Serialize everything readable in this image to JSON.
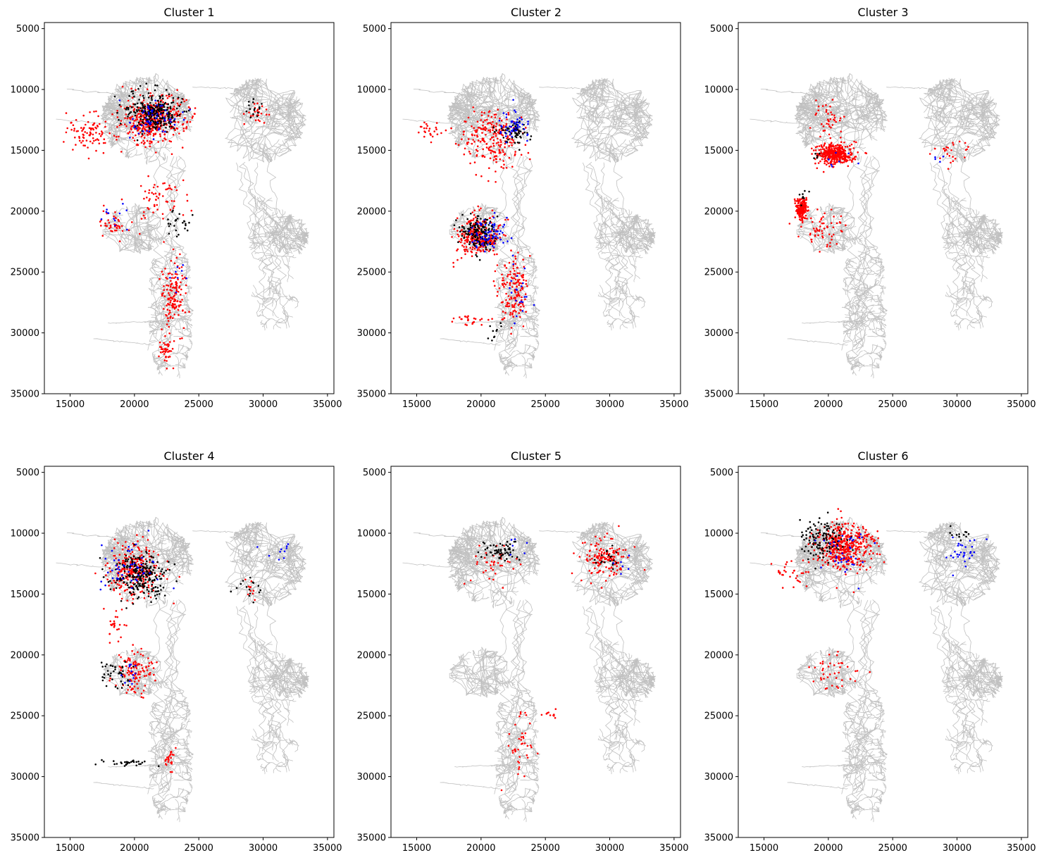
{
  "figure": {
    "background": "#ffffff",
    "skeleton_color": "#c0c0c0",
    "marker_colors": [
      "#ff0000",
      "#000000",
      "#0000ff"
    ]
  },
  "chart_data": [
    {
      "type": "scatter",
      "title": "Cluster 1",
      "xlim": [
        13000,
        35500
      ],
      "ylim": [
        35000,
        4500
      ],
      "y_inverted": true,
      "xticks": [
        "15000",
        "20000",
        "25000",
        "30000",
        "35000"
      ],
      "yticks": [
        "5000",
        "10000",
        "15000",
        "20000",
        "25000",
        "30000",
        "35000"
      ],
      "grid": false,
      "series": [
        {
          "color": "#ff0000",
          "regions": [
            {
              "cx": 21500,
              "cy": 12500,
              "sx": 2000,
              "sy": 1600,
              "n": 420
            },
            {
              "cx": 16500,
              "cy": 13500,
              "sx": 1500,
              "sy": 1200,
              "n": 90
            },
            {
              "cx": 22000,
              "cy": 19000,
              "sx": 1600,
              "sy": 1500,
              "n": 60
            },
            {
              "cx": 23000,
              "cy": 27000,
              "sx": 800,
              "sy": 2500,
              "n": 140
            },
            {
              "cx": 18500,
              "cy": 21000,
              "sx": 900,
              "sy": 900,
              "n": 40
            },
            {
              "cx": 29500,
              "cy": 12000,
              "sx": 900,
              "sy": 700,
              "n": 25
            },
            {
              "cx": 22500,
              "cy": 31500,
              "sx": 500,
              "sy": 700,
              "n": 40
            }
          ]
        },
        {
          "color": "#000000",
          "regions": [
            {
              "cx": 21500,
              "cy": 11800,
              "sx": 1600,
              "sy": 1300,
              "n": 260
            },
            {
              "cx": 23500,
              "cy": 21000,
              "sx": 800,
              "sy": 1000,
              "n": 25
            },
            {
              "cx": 29500,
              "cy": 11500,
              "sx": 700,
              "sy": 600,
              "n": 15
            }
          ]
        },
        {
          "color": "#0000ff",
          "regions": [
            {
              "cx": 21500,
              "cy": 12500,
              "sx": 1700,
              "sy": 1500,
              "n": 60
            },
            {
              "cx": 18500,
              "cy": 20500,
              "sx": 800,
              "sy": 900,
              "n": 12
            },
            {
              "cx": 23500,
              "cy": 25000,
              "sx": 600,
              "sy": 1200,
              "n": 8
            }
          ]
        }
      ]
    },
    {
      "type": "scatter",
      "title": "Cluster 2",
      "xlim": [
        13000,
        35500
      ],
      "ylim": [
        35000,
        4500
      ],
      "y_inverted": true,
      "xticks": [
        "15000",
        "20000",
        "25000",
        "30000",
        "35000"
      ],
      "yticks": [
        "5000",
        "10000",
        "15000",
        "20000",
        "25000",
        "30000",
        "35000"
      ],
      "grid": false,
      "series": [
        {
          "color": "#ff0000",
          "regions": [
            {
              "cx": 19800,
              "cy": 22000,
              "sx": 1400,
              "sy": 1400,
              "n": 260
            },
            {
              "cx": 21000,
              "cy": 14000,
              "sx": 2200,
              "sy": 2000,
              "n": 220
            },
            {
              "cx": 22500,
              "cy": 26500,
              "sx": 1000,
              "sy": 2500,
              "n": 150
            },
            {
              "cx": 19000,
              "cy": 29000,
              "sx": 1200,
              "sy": 400,
              "n": 25
            },
            {
              "cx": 16000,
              "cy": 13500,
              "sx": 900,
              "sy": 600,
              "n": 25
            }
          ]
        },
        {
          "color": "#000000",
          "regions": [
            {
              "cx": 19800,
              "cy": 21800,
              "sx": 1100,
              "sy": 1100,
              "n": 160
            },
            {
              "cx": 22500,
              "cy": 13500,
              "sx": 1000,
              "sy": 900,
              "n": 70
            },
            {
              "cx": 21000,
              "cy": 30000,
              "sx": 600,
              "sy": 600,
              "n": 10
            }
          ]
        },
        {
          "color": "#0000ff",
          "regions": [
            {
              "cx": 20500,
              "cy": 22000,
              "sx": 1200,
              "sy": 1300,
              "n": 70
            },
            {
              "cx": 22500,
              "cy": 13000,
              "sx": 1100,
              "sy": 1100,
              "n": 50
            },
            {
              "cx": 23000,
              "cy": 27000,
              "sx": 800,
              "sy": 1800,
              "n": 20
            }
          ]
        }
      ]
    },
    {
      "type": "scatter",
      "title": "Cluster 3",
      "xlim": [
        13000,
        35500
      ],
      "ylim": [
        35000,
        4500
      ],
      "y_inverted": true,
      "xticks": [
        "15000",
        "20000",
        "25000",
        "30000",
        "35000"
      ],
      "yticks": [
        "5000",
        "10000",
        "15000",
        "20000",
        "25000",
        "30000",
        "35000"
      ],
      "grid": false,
      "series": [
        {
          "color": "#ff0000",
          "regions": [
            {
              "cx": 20500,
              "cy": 15300,
              "sx": 1200,
              "sy": 700,
              "n": 380
            },
            {
              "cx": 17900,
              "cy": 19800,
              "sx": 350,
              "sy": 700,
              "n": 200
            },
            {
              "cx": 19500,
              "cy": 21500,
              "sx": 1400,
              "sy": 1200,
              "n": 60
            },
            {
              "cx": 20000,
              "cy": 12500,
              "sx": 1000,
              "sy": 1500,
              "n": 40
            },
            {
              "cx": 29800,
              "cy": 15000,
              "sx": 1200,
              "sy": 900,
              "n": 25
            }
          ]
        },
        {
          "color": "#000000",
          "regions": [
            {
              "cx": 18000,
              "cy": 18800,
              "sx": 400,
              "sy": 400,
              "n": 8
            },
            {
              "cx": 19000,
              "cy": 15500,
              "sx": 600,
              "sy": 500,
              "n": 5
            }
          ]
        },
        {
          "color": "#0000ff",
          "regions": [
            {
              "cx": 21000,
              "cy": 16000,
              "sx": 1500,
              "sy": 1200,
              "n": 8
            },
            {
              "cx": 28500,
              "cy": 15500,
              "sx": 900,
              "sy": 500,
              "n": 4
            }
          ]
        }
      ]
    },
    {
      "type": "scatter",
      "title": "Cluster 4",
      "xlim": [
        13000,
        35500
      ],
      "ylim": [
        35000,
        4500
      ],
      "y_inverted": true,
      "xticks": [
        "15000",
        "20000",
        "25000",
        "30000",
        "35000"
      ],
      "yticks": [
        "5000",
        "10000",
        "15000",
        "20000",
        "25000",
        "30000",
        "35000"
      ],
      "grid": false,
      "series": [
        {
          "color": "#ff0000",
          "regions": [
            {
              "cx": 20000,
              "cy": 13000,
              "sx": 1700,
              "sy": 1800,
              "n": 260
            },
            {
              "cx": 20000,
              "cy": 21500,
              "sx": 1200,
              "sy": 1400,
              "n": 110
            },
            {
              "cx": 22700,
              "cy": 28500,
              "sx": 400,
              "sy": 700,
              "n": 25
            },
            {
              "cx": 18500,
              "cy": 17500,
              "sx": 700,
              "sy": 1000,
              "n": 25
            },
            {
              "cx": 29000,
              "cy": 14500,
              "sx": 700,
              "sy": 800,
              "n": 10
            }
          ]
        },
        {
          "color": "#000000",
          "regions": [
            {
              "cx": 20500,
              "cy": 13500,
              "sx": 1700,
              "sy": 1600,
              "n": 230
            },
            {
              "cx": 19500,
              "cy": 28900,
              "sx": 1400,
              "sy": 200,
              "n": 30
            },
            {
              "cx": 18500,
              "cy": 21500,
              "sx": 1000,
              "sy": 1000,
              "n": 40
            },
            {
              "cx": 29000,
              "cy": 14500,
              "sx": 900,
              "sy": 800,
              "n": 15
            }
          ]
        },
        {
          "color": "#0000ff",
          "regions": [
            {
              "cx": 19500,
              "cy": 13000,
              "sx": 2000,
              "sy": 1800,
              "n": 50
            },
            {
              "cx": 31500,
              "cy": 11500,
              "sx": 1000,
              "sy": 800,
              "n": 10
            },
            {
              "cx": 19500,
              "cy": 21500,
              "sx": 800,
              "sy": 1000,
              "n": 12
            }
          ]
        }
      ]
    },
    {
      "type": "scatter",
      "title": "Cluster 5",
      "xlim": [
        13000,
        35500
      ],
      "ylim": [
        35000,
        4500
      ],
      "y_inverted": true,
      "xticks": [
        "15000",
        "20000",
        "25000",
        "30000",
        "35000"
      ],
      "yticks": [
        "5000",
        "10000",
        "15000",
        "20000",
        "25000",
        "30000",
        "35000"
      ],
      "grid": false,
      "series": [
        {
          "color": "#ff0000",
          "regions": [
            {
              "cx": 29500,
              "cy": 12000,
              "sx": 1500,
              "sy": 1300,
              "n": 140
            },
            {
              "cx": 21000,
              "cy": 12500,
              "sx": 1500,
              "sy": 1400,
              "n": 40
            },
            {
              "cx": 23000,
              "cy": 27500,
              "sx": 800,
              "sy": 2300,
              "n": 40
            },
            {
              "cx": 25500,
              "cy": 25000,
              "sx": 500,
              "sy": 300,
              "n": 10
            }
          ]
        },
        {
          "color": "#000000",
          "regions": [
            {
              "cx": 21500,
              "cy": 11500,
              "sx": 1000,
              "sy": 700,
              "n": 60
            },
            {
              "cx": 30000,
              "cy": 12200,
              "sx": 800,
              "sy": 700,
              "n": 20
            }
          ]
        },
        {
          "color": "#0000ff",
          "regions": [
            {
              "cx": 22500,
              "cy": 11000,
              "sx": 1000,
              "sy": 900,
              "n": 6
            },
            {
              "cx": 31000,
              "cy": 12000,
              "sx": 1000,
              "sy": 900,
              "n": 6
            }
          ]
        }
      ]
    },
    {
      "type": "scatter",
      "title": "Cluster 6",
      "xlim": [
        13000,
        35500
      ],
      "ylim": [
        35000,
        4500
      ],
      "y_inverted": true,
      "xticks": [
        "15000",
        "20000",
        "25000",
        "30000",
        "35000"
      ],
      "yticks": [
        "5000",
        "10000",
        "15000",
        "20000",
        "25000",
        "30000",
        "35000"
      ],
      "grid": false,
      "series": [
        {
          "color": "#ff0000",
          "regions": [
            {
              "cx": 21200,
              "cy": 11000,
              "sx": 1800,
              "sy": 1700,
              "n": 420
            },
            {
              "cx": 20500,
              "cy": 21500,
              "sx": 1500,
              "sy": 1500,
              "n": 40
            },
            {
              "cx": 17000,
              "cy": 13500,
              "sx": 1200,
              "sy": 1000,
              "n": 30
            }
          ]
        },
        {
          "color": "#000000",
          "regions": [
            {
              "cx": 19500,
              "cy": 10500,
              "sx": 1400,
              "sy": 1300,
              "n": 120
            },
            {
              "cx": 30000,
              "cy": 10200,
              "sx": 900,
              "sy": 600,
              "n": 12
            }
          ]
        },
        {
          "color": "#0000ff",
          "regions": [
            {
              "cx": 21500,
              "cy": 11500,
              "sx": 1600,
              "sy": 1600,
              "n": 40
            },
            {
              "cx": 30500,
              "cy": 11500,
              "sx": 1200,
              "sy": 1200,
              "n": 30
            }
          ]
        }
      ]
    }
  ]
}
